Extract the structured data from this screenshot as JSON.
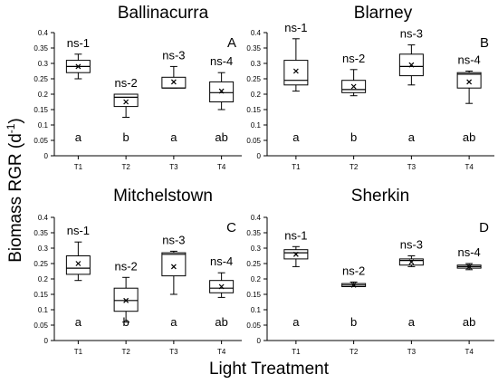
{
  "figure": {
    "ylabel": "Biomass RGR (d",
    "ylabel_sup": "-1",
    "ylabel_close": ")",
    "xlabel": "Light Treatment"
  },
  "chart_data": [
    {
      "type": "box",
      "title": "Ballinacurra",
      "panel_letter": "A",
      "categories": [
        "T1",
        "T2",
        "T3",
        "T4"
      ],
      "ylim": [
        0,
        0.4
      ],
      "yticks": [
        "0",
        "0.05",
        "0.1",
        "0.15",
        "0.2",
        "0.25",
        "0.3",
        "0.35",
        "0.4"
      ],
      "ns_labels": [
        "ns-1",
        "ns-2",
        "ns-3",
        "ns-4"
      ],
      "letters": [
        "a",
        "b",
        "a",
        "ab"
      ],
      "boxes": [
        {
          "min": 0.25,
          "q1": 0.27,
          "median": 0.29,
          "q3": 0.31,
          "max": 0.33,
          "mean": 0.29
        },
        {
          "min": 0.125,
          "q1": 0.16,
          "median": 0.19,
          "q3": 0.2,
          "max": 0.2,
          "mean": 0.175
        },
        {
          "min": 0.22,
          "q1": 0.22,
          "median": 0.22,
          "q3": 0.255,
          "max": 0.29,
          "mean": 0.24
        },
        {
          "min": 0.15,
          "q1": 0.175,
          "median": 0.205,
          "q3": 0.24,
          "max": 0.27,
          "mean": 0.21
        }
      ]
    },
    {
      "type": "box",
      "title": "Blarney",
      "panel_letter": "B",
      "categories": [
        "T1",
        "T2",
        "T3",
        "T4"
      ],
      "ylim": [
        0,
        0.4
      ],
      "yticks": [
        "0",
        "0.05",
        "0.1",
        "0.15",
        "0.2",
        "0.25",
        "0.3",
        "0.35",
        "0.4"
      ],
      "ns_labels": [
        "ns-1",
        "ns-2",
        "ns-3",
        "ns-4"
      ],
      "letters": [
        "a",
        "b",
        "a",
        "ab"
      ],
      "boxes": [
        {
          "min": 0.21,
          "q1": 0.23,
          "median": 0.245,
          "q3": 0.31,
          "max": 0.38,
          "mean": 0.275
        },
        {
          "min": 0.195,
          "q1": 0.205,
          "median": 0.215,
          "q3": 0.245,
          "max": 0.28,
          "mean": 0.225
        },
        {
          "min": 0.23,
          "q1": 0.26,
          "median": 0.29,
          "q3": 0.33,
          "max": 0.36,
          "mean": 0.295
        },
        {
          "min": 0.17,
          "q1": 0.22,
          "median": 0.265,
          "q3": 0.27,
          "max": 0.275,
          "mean": 0.24
        }
      ]
    },
    {
      "type": "box",
      "title": "Mitchelstown",
      "panel_letter": "C",
      "categories": [
        "T1",
        "T2",
        "T3",
        "T4"
      ],
      "ylim": [
        0,
        0.4
      ],
      "yticks": [
        "0",
        "0.05",
        "0.1",
        "0.15",
        "0.2",
        "0.25",
        "0.3",
        "0.35",
        "0.4"
      ],
      "ns_labels": [
        "ns-1",
        "ns-2",
        "ns-3",
        "ns-4"
      ],
      "letters": [
        "a",
        "b",
        "a",
        "ab"
      ],
      "boxes": [
        {
          "min": 0.195,
          "q1": 0.215,
          "median": 0.235,
          "q3": 0.275,
          "max": 0.32,
          "mean": 0.25
        },
        {
          "min": 0.06,
          "q1": 0.095,
          "median": 0.13,
          "q3": 0.17,
          "max": 0.205,
          "mean": 0.13
        },
        {
          "min": 0.15,
          "q1": 0.21,
          "median": 0.28,
          "q3": 0.285,
          "max": 0.29,
          "mean": 0.24
        },
        {
          "min": 0.14,
          "q1": 0.155,
          "median": 0.17,
          "q3": 0.195,
          "max": 0.22,
          "mean": 0.175
        }
      ]
    },
    {
      "type": "box",
      "title": "Sherkin",
      "panel_letter": "D",
      "categories": [
        "T1",
        "T2",
        "T3",
        "T4"
      ],
      "ylim": [
        0,
        0.4
      ],
      "yticks": [
        "0",
        "0.05",
        "0.1",
        "0.15",
        "0.2",
        "0.25",
        "0.3",
        "0.35",
        "0.4"
      ],
      "ns_labels": [
        "ns-1",
        "ns-2",
        "ns-3",
        "ns-4"
      ],
      "letters": [
        "a",
        "b",
        "a",
        "ab"
      ],
      "boxes": [
        {
          "min": 0.24,
          "q1": 0.265,
          "median": 0.285,
          "q3": 0.295,
          "max": 0.305,
          "mean": 0.28
        },
        {
          "min": 0.175,
          "q1": 0.175,
          "median": 0.18,
          "q3": 0.185,
          "max": 0.19,
          "mean": 0.18
        },
        {
          "min": 0.24,
          "q1": 0.245,
          "median": 0.26,
          "q3": 0.265,
          "max": 0.275,
          "mean": 0.255
        },
        {
          "min": 0.23,
          "q1": 0.235,
          "median": 0.24,
          "q3": 0.245,
          "max": 0.25,
          "mean": 0.24
        }
      ]
    }
  ]
}
